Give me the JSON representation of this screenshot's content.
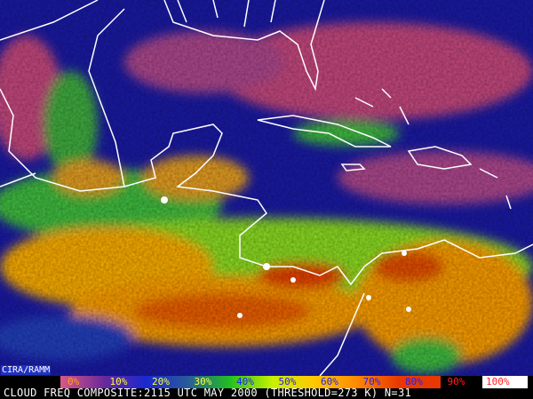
{
  "credit": "CIRA/RAMM",
  "caption": "CLOUD FREQ COMPOSITE:2115 UTC MAY 2000 (THRESHOLD=273 K) N=31",
  "legend": {
    "labels": [
      "0%",
      "10%",
      "20%",
      "30%",
      "40%",
      "50%",
      "60%",
      "70%",
      "80%",
      "90%",
      "100%"
    ],
    "label_colors": [
      "#ffa020",
      "#ffff40",
      "#ffff40",
      "#ffff40",
      "#2020ff",
      "#2020ff",
      "#2020ff",
      "#2020ff",
      "#2020ff",
      "#ff2020",
      "#ff2020"
    ],
    "segment_colors": [
      "#d85888",
      "#6a2a9a",
      "#1a28d0",
      "#2a5a9a",
      "#20c020",
      "#c8f000",
      "#ffc800",
      "#ff8a00",
      "#e83800",
      "#000000",
      "#ffffff"
    ]
  },
  "map_colors": {
    "ocean": "#1a1aa8",
    "clear": "#c84a80",
    "coast": "#ffffff"
  }
}
